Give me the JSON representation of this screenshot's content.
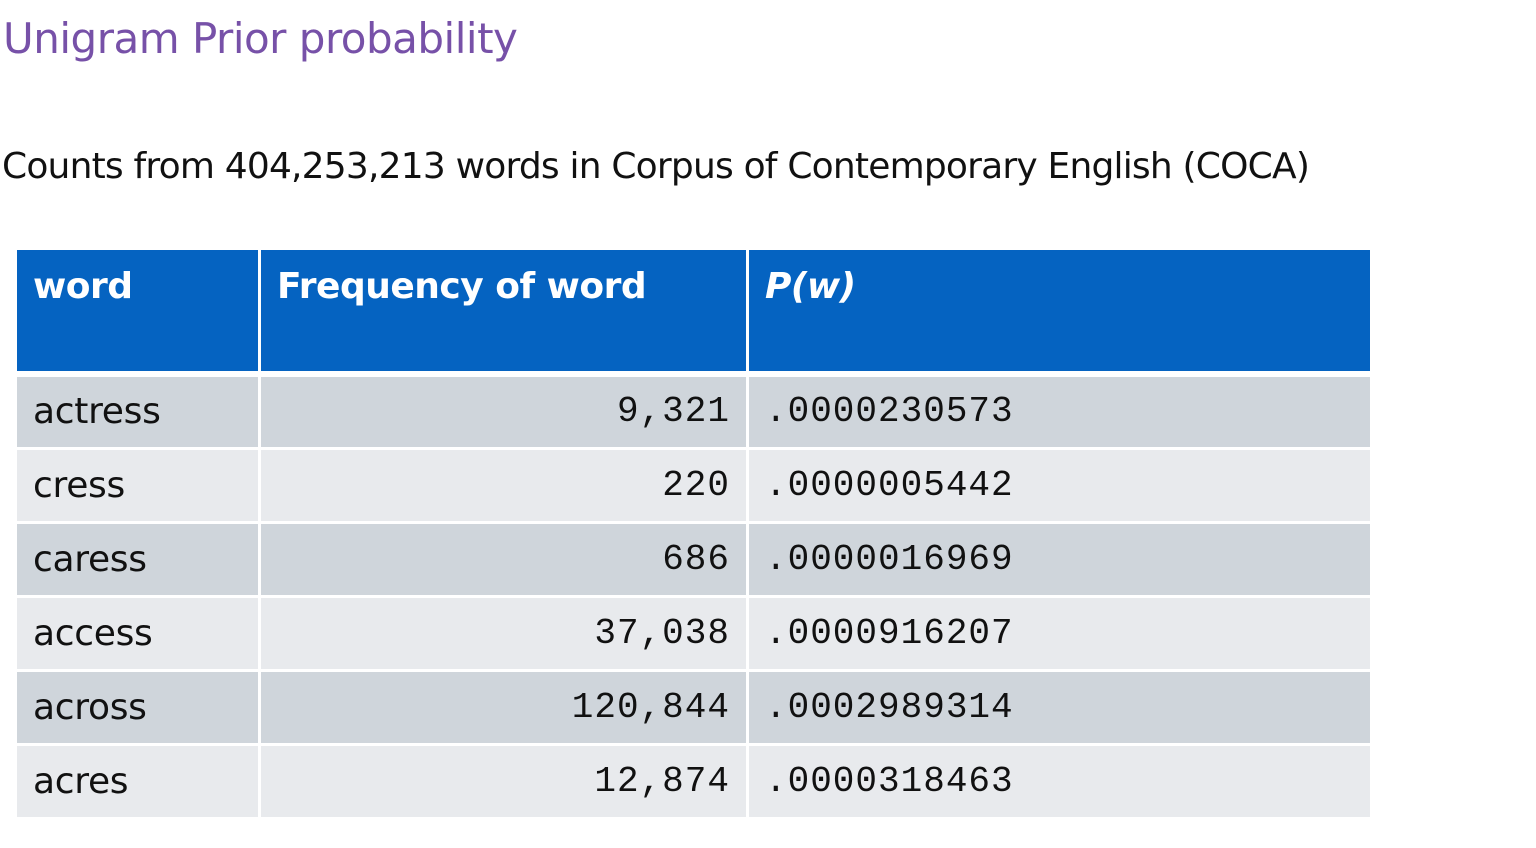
{
  "title": "Unigram Prior probability",
  "subtitle": "Counts from 404,253,213 words in Corpus of Contemporary English (COCA)",
  "table": {
    "headers": [
      "word",
      "Frequency of word",
      "P(w)"
    ],
    "rows": [
      {
        "word": "actress",
        "frequency": "9,321",
        "probability": ".0000230573"
      },
      {
        "word": "cress",
        "frequency": "220",
        "probability": ".0000005442"
      },
      {
        "word": "caress",
        "frequency": "686",
        "probability": ".0000016969"
      },
      {
        "word": "access",
        "frequency": "37,038",
        "probability": ".0000916207"
      },
      {
        "word": "across",
        "frequency": "120,844",
        "probability": ".0002989314"
      },
      {
        "word": "acres",
        "frequency": "12,874",
        "probability": ".0000318463"
      }
    ]
  },
  "colors": {
    "title": "#7751a8",
    "header_bg": "#0563c1",
    "row_dark": "#cfd5db",
    "row_light": "#e8eaed"
  }
}
